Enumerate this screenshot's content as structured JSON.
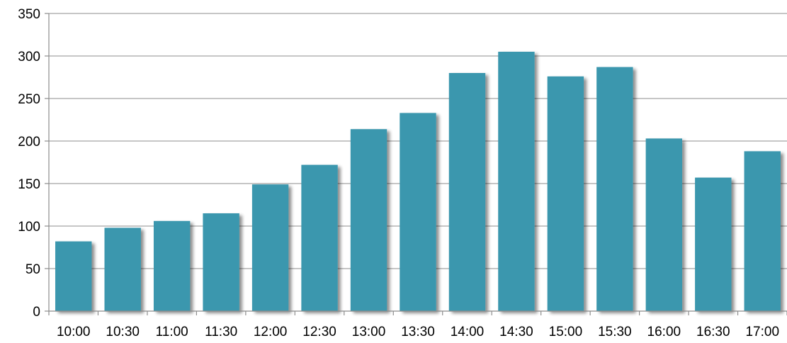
{
  "chart_data": {
    "type": "bar",
    "title": "",
    "xlabel": "",
    "ylabel": "",
    "categories": [
      "10:00",
      "10:30",
      "11:00",
      "11:30",
      "12:00",
      "12:30",
      "13:00",
      "13:30",
      "14:00",
      "14:30",
      "15:00",
      "15:30",
      "16:00",
      "16:30",
      "17:00"
    ],
    "values": [
      82,
      98,
      106,
      115,
      149,
      172,
      214,
      233,
      280,
      305,
      276,
      287,
      203,
      157,
      188
    ],
    "ylim": [
      0,
      350
    ],
    "yticks": [
      0,
      50,
      100,
      150,
      200,
      250,
      300,
      350
    ],
    "grid": true,
    "legend": "none",
    "colors": {
      "bar": "#3a97ae",
      "bar_shadow": "#b9b9b9",
      "grid": "#8c8c8c"
    }
  }
}
